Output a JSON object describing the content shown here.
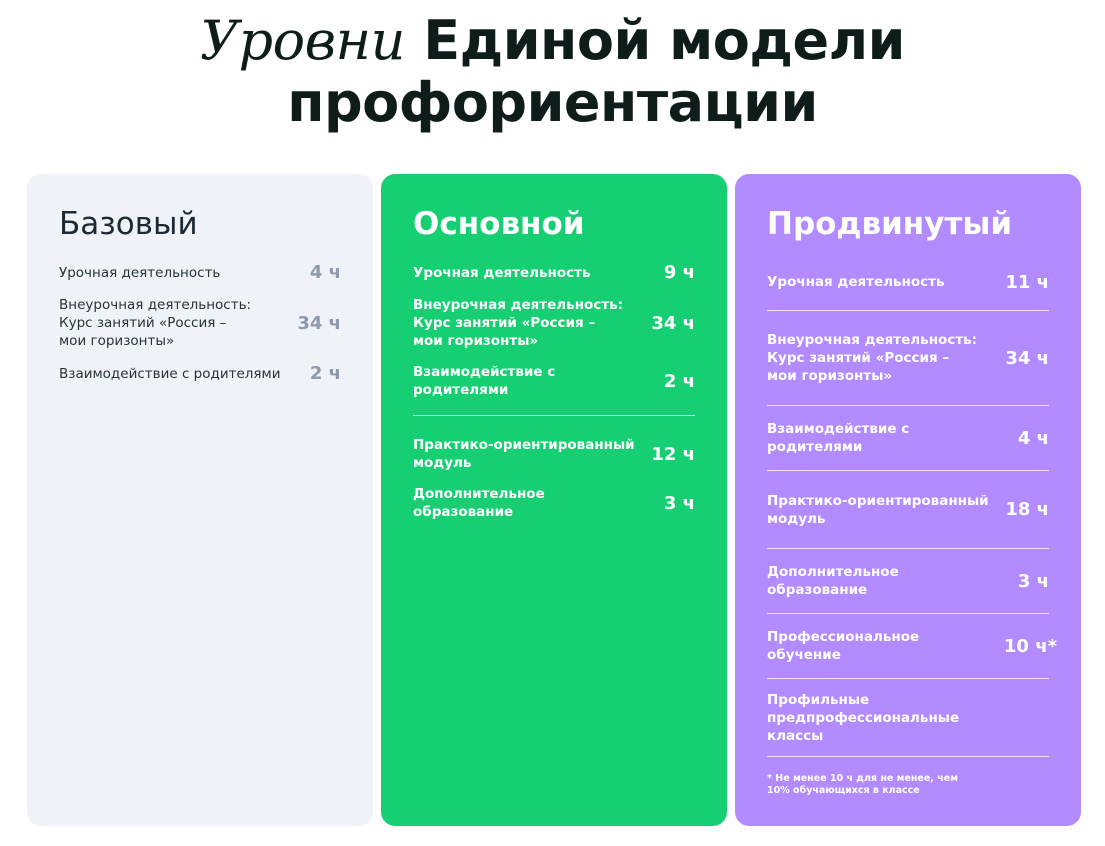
{
  "title": {
    "italic": "Уровни",
    "bold": "Единой модели профориентации"
  },
  "cards": {
    "basic": {
      "title": "Базовый",
      "rows": [
        {
          "label": "Урочная деятельность",
          "value": "4 ч"
        },
        {
          "label": "Внеурочная деятельность:\nКурс занятий «Россия –\nмои горизонты»",
          "value": "34 ч"
        },
        {
          "label": "Взаимодействие с родителями",
          "value": "2 ч"
        }
      ]
    },
    "main": {
      "title": "Основной",
      "rows": [
        {
          "label": "Урочная деятельность",
          "value": "9 ч"
        },
        {
          "label": "Внеурочная деятельность:\nКурс занятий «Россия –\nмои горизонты»",
          "value": "34 ч"
        },
        {
          "label": "Взаимодействие с родителями",
          "value": "2 ч"
        }
      ],
      "extra_rows": [
        {
          "label": "Практико-ориентированный\nмодуль",
          "value": "12 ч"
        },
        {
          "label": "Дополнительное образование",
          "value": "3 ч"
        }
      ]
    },
    "advanced": {
      "title": "Продвинутый",
      "rows": [
        {
          "label": "Урочная деятельность",
          "value": "11 ч"
        },
        {
          "label": "Внеурочная деятельность:\nКурс занятий «Россия –\nмои горизонты»",
          "value": "34 ч"
        },
        {
          "label": "Взаимодействие с родителями",
          "value": "4 ч"
        },
        {
          "label": "Практико-ориентированный\nмодуль",
          "value": "18 ч"
        },
        {
          "label": "Дополнительное образование",
          "value": "3 ч"
        },
        {
          "label": "Профессиональное обучение",
          "value": "10 ч*"
        },
        {
          "label": "Профильные\nпредпрофессиональные классы",
          "value": ""
        }
      ],
      "footnote": "* Не менее 10 ч для не менее, чем\n10% обучающихся в классе"
    }
  },
  "colors": {
    "basic_bg": "#eff3f8",
    "main_bg": "#17cf73",
    "advanced_bg": "#b18bff"
  }
}
